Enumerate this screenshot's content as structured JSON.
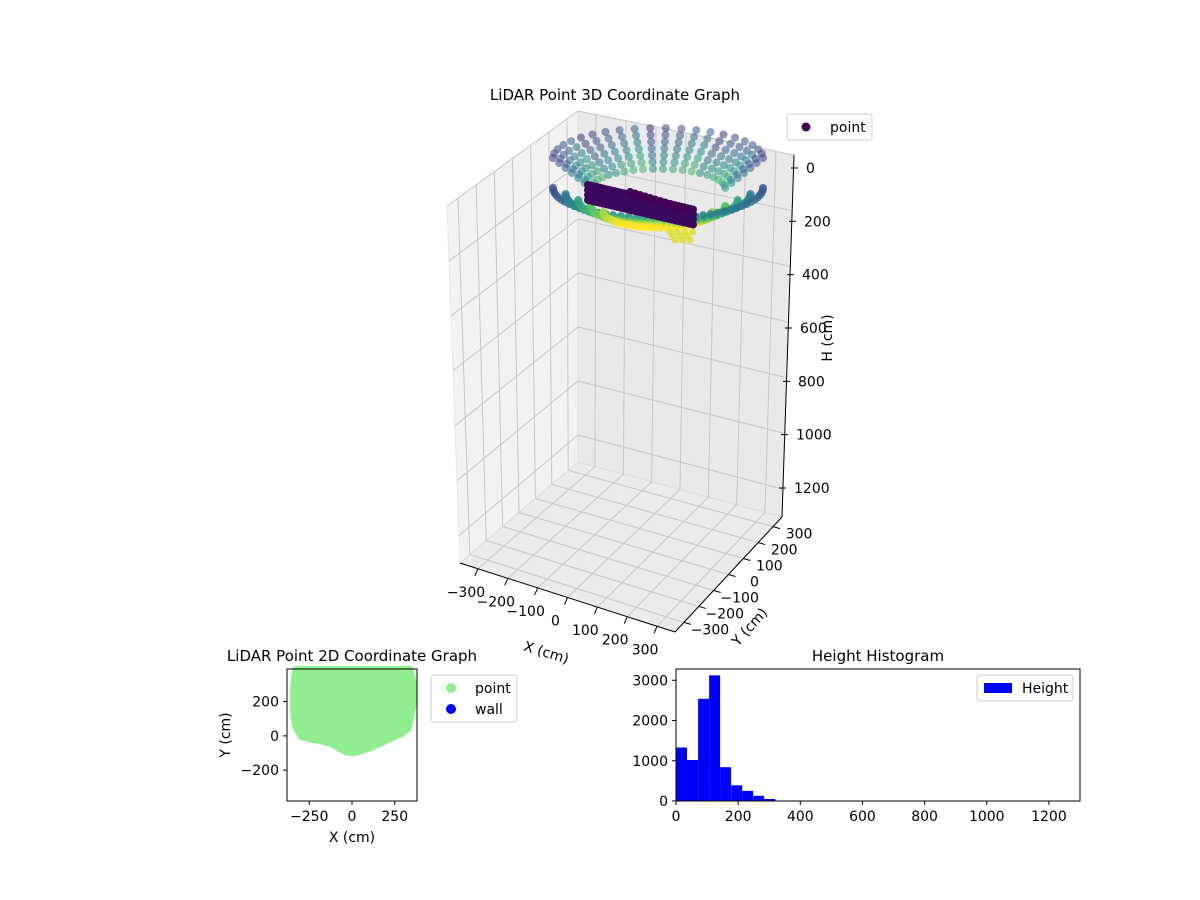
{
  "chart_data": [
    {
      "type": "scatter",
      "title": "LiDAR Point 3D Coordinate Graph",
      "projection": "3d",
      "xlabel": "X (cm)",
      "ylabel": "Y (cm)",
      "zlabel": "H (cm)",
      "x_ticks": [
        "−300",
        "−200",
        "−100",
        "0",
        "100",
        "200",
        "300"
      ],
      "y_ticks": [
        "−300",
        "−200",
        "−100",
        "0",
        "100",
        "200",
        "300"
      ],
      "z_ticks": [
        "0",
        "200",
        "400",
        "600",
        "800",
        "1000",
        "1200"
      ],
      "xlim": [
        -360,
        360
      ],
      "ylim": [
        -360,
        360
      ],
      "zlim": [
        0,
        1300
      ],
      "z_inverted": true,
      "colormap": "viridis",
      "legend": {
        "position": "top-right",
        "entries": [
          {
            "label": "point",
            "color": "#440154"
          }
        ]
      },
      "grid": true
    },
    {
      "type": "scatter",
      "title": "LiDAR Point 2D Coordinate Graph",
      "xlabel": "X (cm)",
      "ylabel": "Y (cm)",
      "x_ticks": [
        "−250",
        "0",
        "250"
      ],
      "y_ticks": [
        "200",
        "0",
        "−200"
      ],
      "xlim": [
        -380,
        380
      ],
      "ylim": [
        -380,
        390
      ],
      "legend": {
        "position": "outside-right",
        "entries": [
          {
            "label": "point",
            "color": "#90ee90"
          },
          {
            "label": "wall",
            "color": "#0000ff"
          }
        ]
      },
      "series": [
        {
          "name": "point",
          "color": "#90ee90",
          "region_outline": [
            [
              -330,
              390
            ],
            [
              340,
              390
            ],
            [
              358,
              330
            ],
            [
              365,
              250
            ],
            [
              360,
              180
            ],
            [
              345,
              100
            ],
            [
              330,
              40
            ],
            [
              290,
              10
            ],
            [
              240,
              -10
            ],
            [
              180,
              -40
            ],
            [
              110,
              -70
            ],
            [
              40,
              -95
            ],
            [
              0,
              -100
            ],
            [
              -40,
              -95
            ],
            [
              -80,
              -70
            ],
            [
              -130,
              -45
            ],
            [
              -190,
              -30
            ],
            [
              -250,
              -20
            ],
            [
              -300,
              -5
            ],
            [
              -335,
              60
            ],
            [
              -345,
              150
            ],
            [
              -345,
              250
            ],
            [
              -340,
              330
            ]
          ]
        },
        {
          "name": "wall",
          "color": "#0000ff",
          "points": []
        }
      ]
    },
    {
      "type": "bar",
      "title": "Height Histogram",
      "xlabel": "",
      "ylabel": "",
      "x_ticks": [
        "0",
        "200",
        "400",
        "600",
        "800",
        "1000",
        "1200"
      ],
      "y_ticks": [
        "0",
        "1000",
        "2000",
        "3000"
      ],
      "xlim": [
        0,
        1300
      ],
      "ylim": [
        0,
        3280
      ],
      "bin_width": 35.5,
      "bin_start": 0,
      "legend": {
        "position": "top-right",
        "entries": [
          {
            "label": "Height",
            "color": "#0000ff"
          }
        ]
      },
      "series": [
        {
          "name": "Height",
          "color": "#0000ff",
          "values": [
            1330,
            1020,
            2540,
            3120,
            840,
            390,
            250,
            130,
            50,
            10,
            0,
            0,
            0,
            0,
            0,
            0,
            0,
            0,
            0,
            0,
            0,
            0,
            0,
            0,
            0,
            0,
            0,
            0,
            0,
            0,
            0,
            0,
            0,
            0,
            0,
            3
          ]
        }
      ]
    }
  ]
}
